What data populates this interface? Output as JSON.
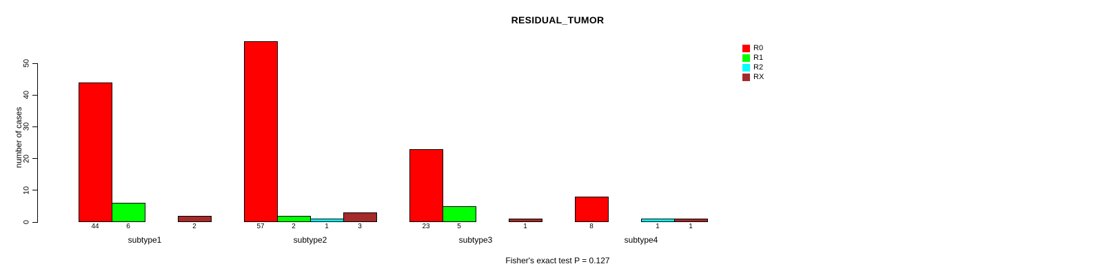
{
  "chart_data": {
    "type": "bar",
    "title": "RESIDUAL_TUMOR",
    "xlabel": "",
    "ylabel": "number of cases",
    "categories": [
      "subtype1",
      "subtype2",
      "subtype3",
      "subtype4"
    ],
    "series": [
      {
        "name": "R0",
        "color": "#ff0000",
        "values": [
          44,
          57,
          23,
          8
        ]
      },
      {
        "name": "R1",
        "color": "#00ff00",
        "values": [
          6,
          2,
          5,
          0
        ]
      },
      {
        "name": "R2",
        "color": "#00ffff",
        "values": [
          0,
          1,
          0,
          1
        ]
      },
      {
        "name": "RX",
        "color": "#a52a2a",
        "values": [
          2,
          3,
          1,
          1
        ]
      }
    ],
    "yticks": [
      0,
      10,
      20,
      30,
      40,
      50
    ],
    "ylim": [
      0,
      58
    ],
    "grid": false,
    "legend_position": "right-of-plot",
    "bar_value_labels": "shown under each bar, omitted when value is 0",
    "annotation": "Fisher's exact test P = 0.127",
    "bar_border_color": "#000000",
    "background_color": "#ffffff"
  }
}
